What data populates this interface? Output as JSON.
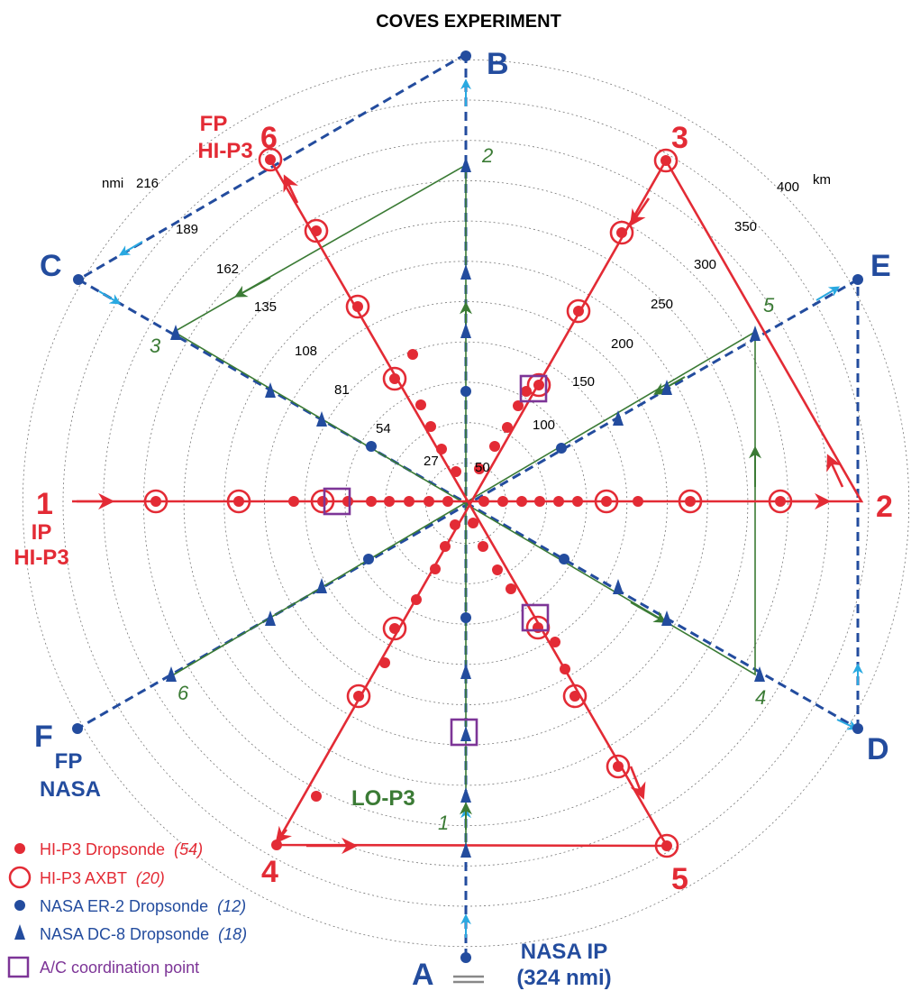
{
  "title": "COVES EXPERIMENT",
  "colors": {
    "red": "#e32b35",
    "blue": "#234c9e",
    "light_blue": "#29a9e1",
    "green": "#3b7b35",
    "purple": "#7d3597",
    "grid": "#777777"
  },
  "units": {
    "nmi": "nmi",
    "km": "km"
  },
  "nmi_rings": [
    "27",
    "54",
    "81",
    "108",
    "135",
    "162",
    "189",
    "216"
  ],
  "km_rings": [
    "50",
    "100",
    "150",
    "200",
    "250",
    "300",
    "350",
    "400"
  ],
  "nasa_points": {
    "A": "A",
    "B": "B",
    "C": "C",
    "D": "D",
    "E": "E",
    "F": "F"
  },
  "hip3_points": {
    "p1": "1",
    "p2": "2",
    "p3": "3",
    "p4": "4",
    "p5": "5",
    "p6": "6"
  },
  "lop3_points": {
    "n1": "1",
    "n2": "2",
    "n3": "3",
    "n4": "4",
    "n5": "5",
    "n6": "6"
  },
  "labels": {
    "ip_hip3_line1": "IP",
    "ip_hip3_line2": "HI-P3",
    "fp_hip3_line1": "FP",
    "fp_hip3_line2": "HI-P3",
    "fp_nasa_line1": "FP",
    "fp_nasa_line2": "NASA",
    "lo_p3": "LO-P3",
    "nasa_ip_line1": "NASA IP",
    "nasa_ip_line2": "(324 nmi)"
  },
  "legend": [
    {
      "symbol": "red-dot",
      "label": "HI-P3 Dropsonde",
      "count": "(54)",
      "color": "#e32b35"
    },
    {
      "symbol": "red-ring",
      "label": "HI-P3 AXBT",
      "count": "(20)",
      "color": "#e32b35"
    },
    {
      "symbol": "blue-dot",
      "label": "NASA ER-2 Dropsonde",
      "count": "(12)",
      "color": "#234c9e"
    },
    {
      "symbol": "blue-triangle",
      "label": "NASA DC-8 Dropsonde",
      "count": "(18)",
      "color": "#234c9e"
    },
    {
      "symbol": "purple-square",
      "label": "A/C coordination point",
      "count": "",
      "color": "#7d3597"
    }
  ]
}
